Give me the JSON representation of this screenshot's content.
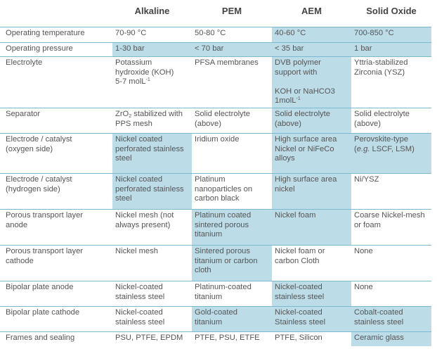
{
  "headers": [
    "Alkaline",
    "PEM",
    "AEM",
    "Solid Oxide"
  ],
  "highlight_color": "#bcdce8",
  "line_color": "#7ab9cf",
  "rows": [
    {
      "label": "Operating temperature",
      "cells": [
        "70-90 °C",
        "50-80 °C",
        "40-60 °C",
        "700-850 °C"
      ],
      "hl": [
        false,
        false,
        true,
        true
      ]
    },
    {
      "label": "Operating pressure",
      "cells": [
        "1-30 bar",
        "< 70 bar",
        "< 35 bar",
        "1 bar"
      ],
      "hl": [
        true,
        true,
        true,
        true
      ]
    },
    {
      "label": "Electrolyte",
      "cells": [
        "Potassium hydroxide (KOH) 5-7 molL-1",
        "PFSA membranes",
        "DVB polymer support with KOH or NaHCO3 1molL-1",
        "Yttria-stabilized Zirconia (YSZ)"
      ],
      "hl": [
        false,
        false,
        true,
        false
      ]
    },
    {
      "label": "Separator",
      "cells": [
        "ZrO2 stabilized with PPS mesh",
        "Solid electrolyte (above)",
        "Solid electrolyte (above)",
        "Solid electrolyte (above)"
      ],
      "hl": [
        false,
        false,
        true,
        false
      ]
    },
    {
      "label": "Electrode / catalyst (oxygen side)",
      "cells": [
        "Nickel coated perforated stainless steel",
        "Iridium oxide",
        "High surface area Nickel or NiFeCo alloys",
        "Perovskite-type (e.g. LSCF, LSM)"
      ],
      "hl": [
        true,
        false,
        true,
        true
      ]
    },
    {
      "label": "Electrode / catalyst (hydrogen side)",
      "cells": [
        "Nickel coated perforated stainless steel",
        "Platinum nanoparticles on carbon black",
        "High surface area nickel",
        "Ni/YSZ"
      ],
      "hl": [
        true,
        false,
        true,
        false
      ]
    },
    {
      "label": "Porous transport layer anode",
      "cells": [
        "Nickel mesh (not always present)",
        "Platinum coated sintered porous titanium",
        "Nickel foam",
        "Coarse Nickel-mesh or foam"
      ],
      "hl": [
        false,
        true,
        true,
        false
      ]
    },
    {
      "label": "Porous transport layer cathode",
      "cells": [
        "Nickel mesh",
        "Sintered porous titanium or carbon cloth",
        "Nickel foam or carbon Cloth",
        "None"
      ],
      "hl": [
        false,
        true,
        false,
        false
      ]
    },
    {
      "label": "Bipolar plate anode",
      "cells": [
        "Nickel-coated stainless steel",
        "Platinum-coated titanium",
        "Nickel-coated stainless steel",
        "None"
      ],
      "hl": [
        false,
        false,
        true,
        false
      ]
    },
    {
      "label": "Bipolar plate cathode",
      "cells": [
        "Nickel-coated stainless steel",
        "Gold-coated titanium",
        "Nickel-coated Stainless steel",
        "Cobalt-coated stainless steel"
      ],
      "hl": [
        false,
        true,
        true,
        true
      ]
    },
    {
      "label": "Frames and sealing",
      "cells": [
        "PSU, PTFE, EPDM",
        "PTFE, PSU, ETFE",
        "PTFE, Silicon",
        "Ceramic glass"
      ],
      "hl": [
        false,
        false,
        false,
        true
      ]
    }
  ]
}
